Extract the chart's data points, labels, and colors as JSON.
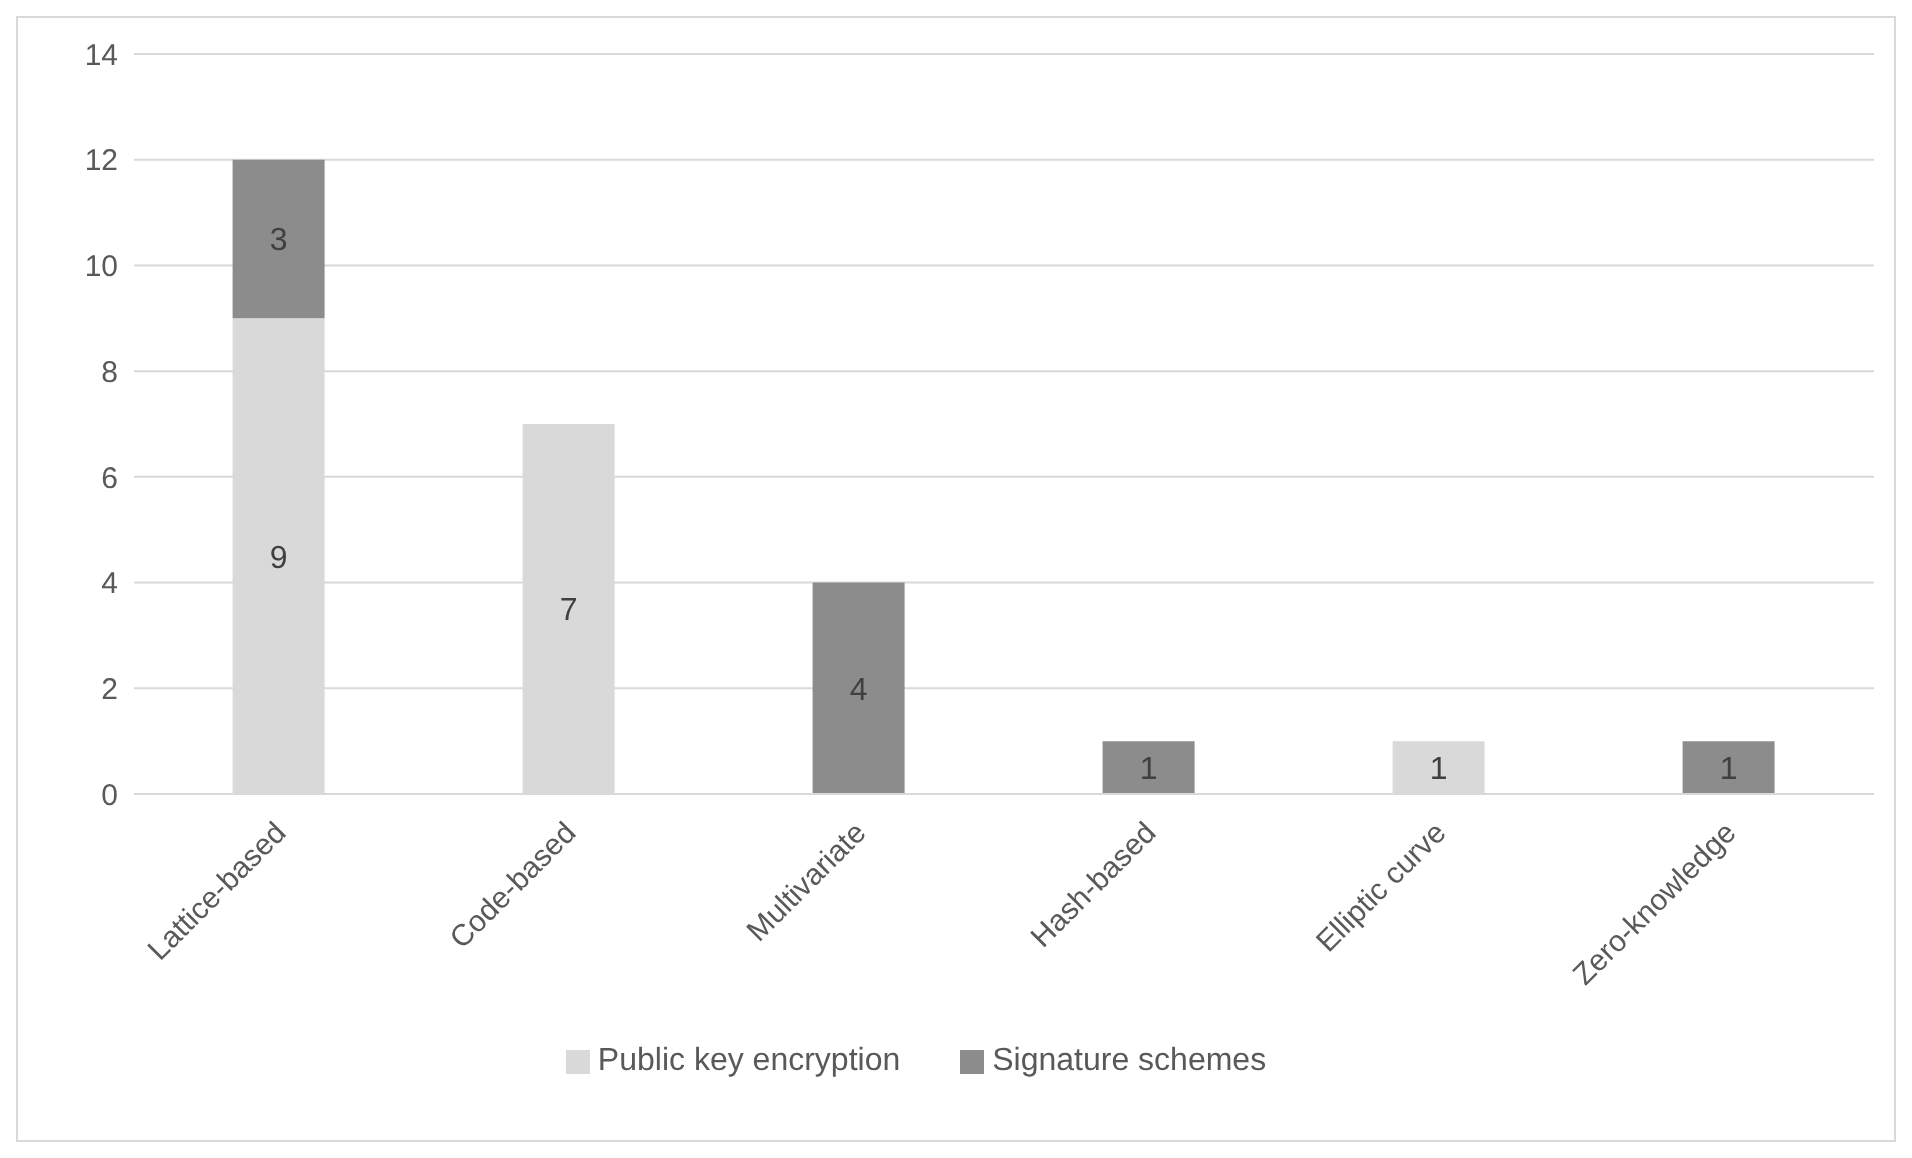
{
  "chart_data": {
    "type": "bar",
    "stacked": true,
    "categories": [
      "Lattice-based",
      "Code-based",
      "Multivariate",
      "Hash-based",
      "Elliptic curve",
      "Zero-knowledge"
    ],
    "series": [
      {
        "name": "Public key encryption",
        "color": "#d9d9d9",
        "values": [
          9,
          7,
          null,
          null,
          1,
          null
        ]
      },
      {
        "name": "Signature schemes",
        "color": "#8c8c8c",
        "values": [
          3,
          null,
          4,
          1,
          null,
          1
        ]
      }
    ],
    "ylim": [
      0,
      14
    ],
    "yticks": [
      0,
      2,
      4,
      6,
      8,
      10,
      12,
      14
    ],
    "grid": "y",
    "legend": "bottom",
    "data_labels": true
  }
}
